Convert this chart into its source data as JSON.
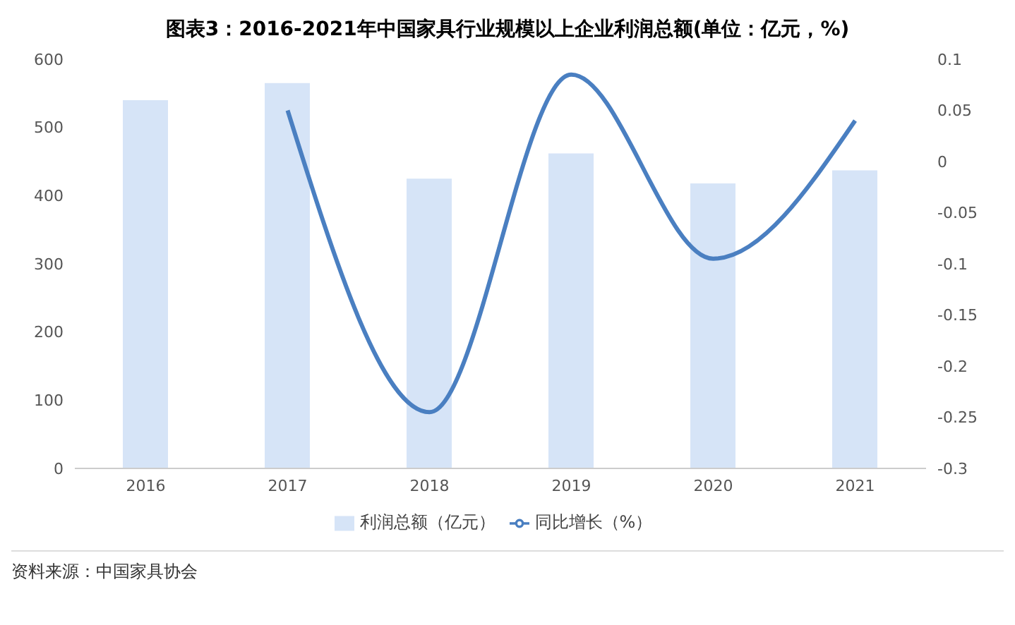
{
  "chart_data": {
    "type": "bar",
    "title": "图表3：2016-2021年中国家具行业规模以上企业利润总额(单位：亿元，%)",
    "categories": [
      "2016",
      "2017",
      "2018",
      "2019",
      "2020",
      "2021"
    ],
    "series": [
      {
        "name": "利润总额（亿元）",
        "color": "#d6e4f7",
        "values": [
          540,
          565,
          425,
          462,
          418,
          437
        ]
      },
      {
        "name": "同比增长（%）",
        "type": "line",
        "axis": "y2",
        "color": "#4a7fc1",
        "values": [
          null,
          0.05,
          -0.245,
          0.085,
          -0.095,
          0.04
        ]
      }
    ],
    "ylim": [
      0,
      600
    ],
    "yticks": [
      0,
      100,
      200,
      300,
      400,
      500,
      600
    ],
    "y2lim": [
      -0.3,
      0.1
    ],
    "y2ticks": [
      -0.3,
      -0.25,
      -0.2,
      -0.15,
      -0.1,
      -0.05,
      0,
      0.05,
      0.1
    ],
    "legend": "bottom",
    "marker": "none",
    "line_style": "solid",
    "annotations": [
      "资料来源：中国家具协会"
    ]
  }
}
